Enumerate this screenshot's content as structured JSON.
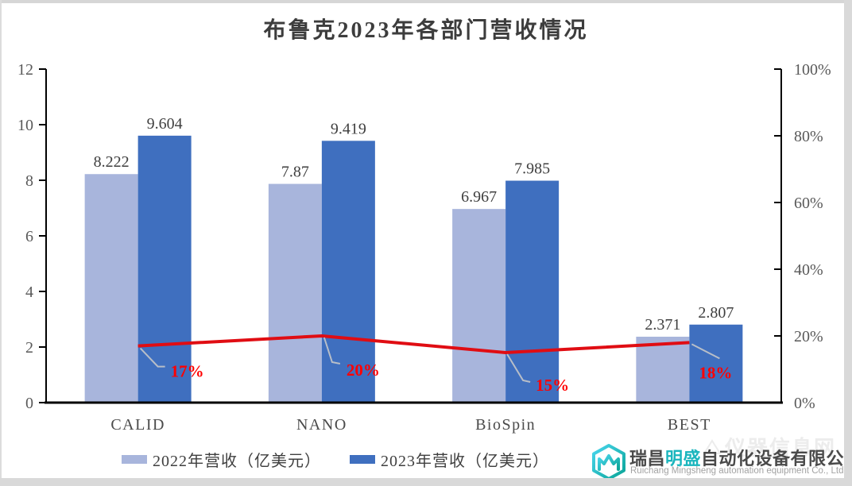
{
  "title": "布鲁克2023年各部门营收情况",
  "chart_data": {
    "type": "bar",
    "subtype": "grouped bars with percent line overlay",
    "categories": [
      "CALID",
      "NANO",
      "BioSpin",
      "BEST"
    ],
    "series": [
      {
        "name": "2022年营收（亿美元）",
        "values": [
          8.222,
          7.87,
          6.967,
          2.371
        ],
        "color": "#a8b5dc"
      },
      {
        "name": "2023年营收（亿美元）",
        "values": [
          9.604,
          9.419,
          7.985,
          2.807
        ],
        "color": "#3f6fbf"
      }
    ],
    "line_series": {
      "values_pct": [
        17,
        20,
        15,
        18
      ],
      "color": "#e00d13",
      "label_color": "#ff0000",
      "leader_color": "#b8bec8"
    },
    "left_axis": {
      "min": 0,
      "max": 12,
      "ticks": [
        0,
        2,
        4,
        6,
        8,
        10,
        12
      ]
    },
    "right_axis": {
      "min": 0,
      "max": 100,
      "tick_labels": [
        "0%",
        "20%",
        "40%",
        "60%",
        "80%",
        "100%"
      ]
    },
    "grid": "off",
    "legend_position": "bottom",
    "axis_color": "#000000",
    "tick_label_color": "#595959",
    "value_label_color": "#3f3f3f"
  },
  "watermark_text": "仪器信息网",
  "footer": {
    "company_cn_prefix": "瑞昌",
    "company_cn_highlight": "明盛",
    "company_cn_suffix": "自动化设备有限公司",
    "company_en": "Ruichang Mingsheng automation equipment Co., Ltd",
    "brand_teal": "#1ab5bd",
    "brand_cyan": "#3cc8e2"
  }
}
